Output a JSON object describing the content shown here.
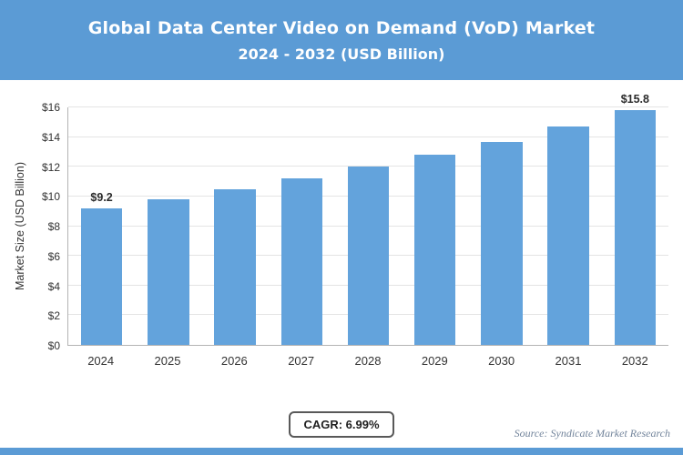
{
  "colors": {
    "accent": "#5b9bd5",
    "bar": "#63a3dc",
    "grid": "#e4e4e4"
  },
  "header": {
    "title_line1": "Global Data Center Video on Demand (VoD) Market",
    "title_line2": "2024 - 2032 (USD Billion)"
  },
  "chart_data": {
    "type": "bar",
    "categories": [
      "2024",
      "2025",
      "2026",
      "2027",
      "2028",
      "2029",
      "2030",
      "2031",
      "2032"
    ],
    "values": [
      9.2,
      9.8,
      10.5,
      11.2,
      12.0,
      12.8,
      13.7,
      14.7,
      15.8
    ],
    "bar_labels": [
      "$9.2",
      "",
      "",
      "",
      "",
      "",
      "",
      "",
      "$15.8"
    ],
    "title": "Global Data Center Video on Demand (VoD) Market 2024 - 2032 (USD Billion)",
    "xlabel": "",
    "ylabel": "Market Size (USD Billion)",
    "ylim": [
      0,
      16
    ],
    "ytick_step": 2,
    "ytick_labels": [
      "$0",
      "$2",
      "$4",
      "$6",
      "$8",
      "$10",
      "$12",
      "$14",
      "$16"
    ],
    "grid": true,
    "legend": "none",
    "bar_color": "#63a3dc"
  },
  "footer": {
    "cagr_label": "CAGR: 6.99%",
    "source": "Source: Syndicate Market Research"
  }
}
